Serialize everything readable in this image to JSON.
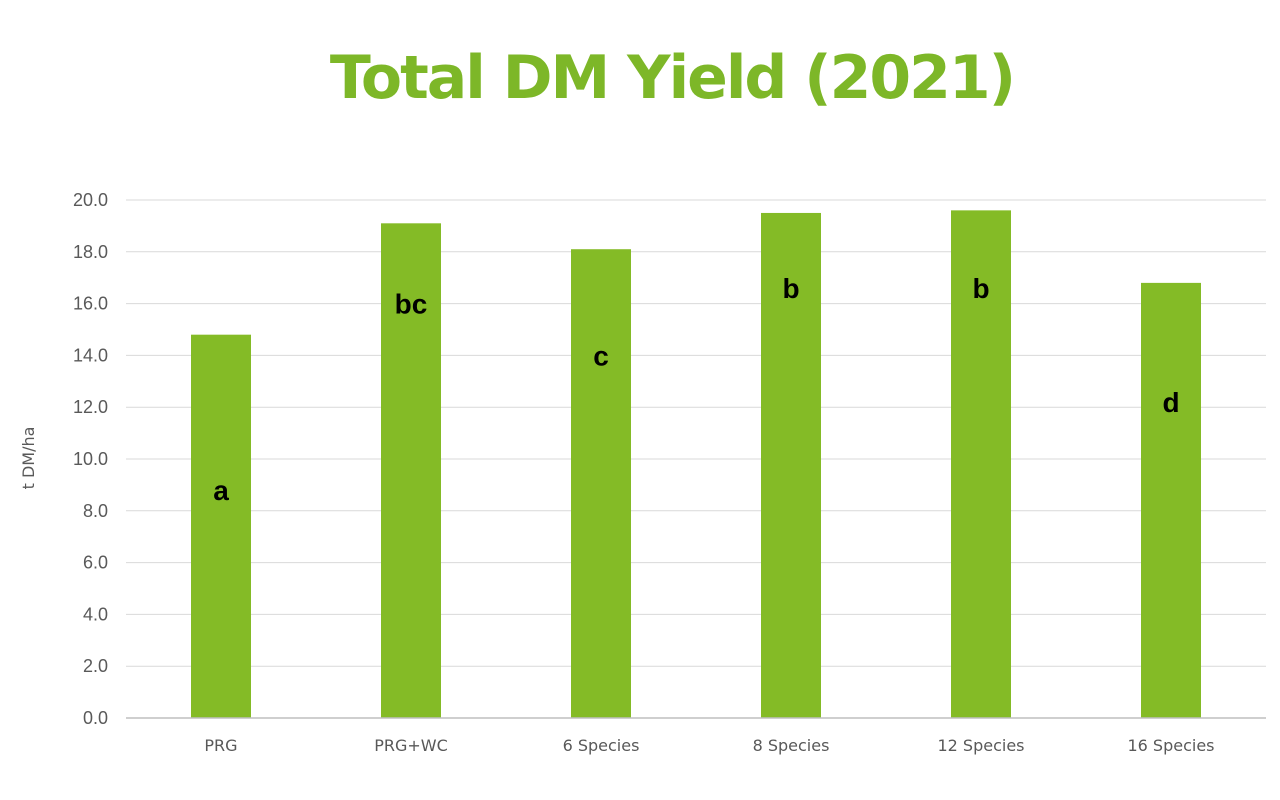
{
  "chart_data": {
    "type": "bar",
    "title": "Total DM Yield (2021)",
    "xlabel": "",
    "ylabel": "t DM/ha",
    "ylim": [
      0,
      20
    ],
    "ytick_step": 2,
    "ytick_labels": [
      "0.0",
      "2.0",
      "4.0",
      "6.0",
      "8.0",
      "10.0",
      "12.0",
      "14.0",
      "16.0",
      "18.0",
      "20.0"
    ],
    "categories": [
      "PRG",
      "PRG+WC",
      "6 Species",
      "8 Species",
      "12 Species",
      "16 Species"
    ],
    "values": [
      14.8,
      19.1,
      18.1,
      19.5,
      19.6,
      16.8
    ],
    "significance_letters": [
      "a",
      "bc",
      "c",
      "b",
      "b",
      "d"
    ],
    "significance_letter_y": [
      8.8,
      16.0,
      14.0,
      16.6,
      16.6,
      12.2
    ],
    "grid": true,
    "legend": "none",
    "colors": {
      "bar": "#84bb26",
      "title": "#7db728",
      "grid": "#d9d9d9",
      "axis": "#bfbfbf",
      "tick_text": "#595959"
    }
  }
}
